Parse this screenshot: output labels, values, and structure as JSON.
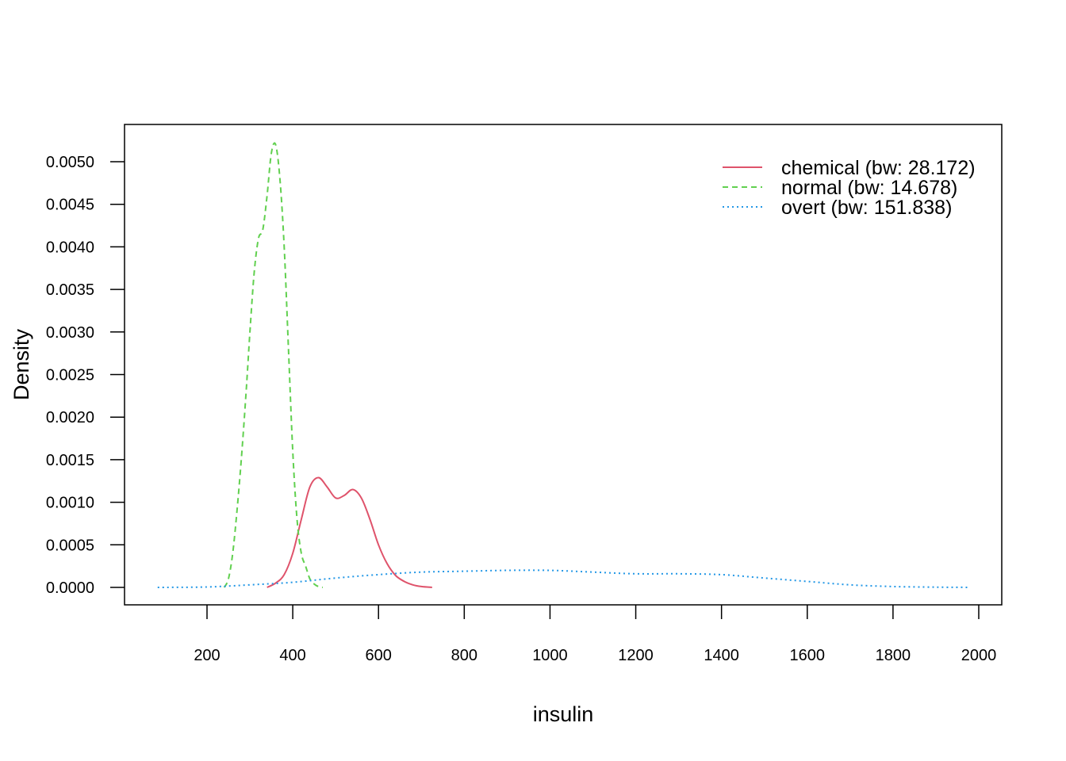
{
  "chart_data": {
    "type": "line",
    "title": "",
    "xlabel": "insulin",
    "ylabel": "Density",
    "xlim": [
      100,
      2000
    ],
    "ylim": [
      0,
      0.0052
    ],
    "x_ticks": [
      200,
      400,
      600,
      800,
      1000,
      1200,
      1400,
      1600,
      1800,
      2000
    ],
    "x_tick_labels": [
      "200",
      "400",
      "600",
      "800",
      "1000",
      "1200",
      "1400",
      "1600",
      "1800",
      "2000"
    ],
    "y_ticks": [
      0,
      0.0005,
      0.001,
      0.0015,
      0.002,
      0.0025,
      0.003,
      0.0035,
      0.004,
      0.0045,
      0.005
    ],
    "y_tick_labels": [
      "0.0000",
      "0.0005",
      "0.0010",
      "0.0015",
      "0.0020",
      "0.0025",
      "0.0030",
      "0.0035",
      "0.0040",
      "0.0045",
      "0.0050"
    ],
    "grid": false,
    "legend_position": "top-right",
    "series": [
      {
        "name": "chemical (bw: 28.172)",
        "color": "#DF536B",
        "dash": "solid",
        "x": [
          340,
          360,
          380,
          400,
          420,
          440,
          460,
          480,
          500,
          520,
          540,
          560,
          580,
          600,
          620,
          640,
          660,
          680,
          700,
          725
        ],
        "y": [
          0.0,
          5e-05,
          0.00015,
          0.0004,
          0.0008,
          0.00118,
          0.00129,
          0.00118,
          0.00105,
          0.00108,
          0.00115,
          0.00105,
          0.0008,
          0.0005,
          0.00028,
          0.00014,
          7e-05,
          3e-05,
          1e-05,
          0.0
        ]
      },
      {
        "name": "normal (bw: 14.678)",
        "color": "#61D04F",
        "dash": "dashed",
        "x": [
          240,
          250,
          260,
          270,
          280,
          290,
          300,
          310,
          320,
          330,
          340,
          350,
          360,
          370,
          380,
          390,
          400,
          410,
          420,
          430,
          440,
          450,
          460,
          470
        ],
        "y": [
          0.0,
          0.0001,
          0.0004,
          0.0009,
          0.0015,
          0.0022,
          0.003,
          0.0037,
          0.0041,
          0.0042,
          0.0046,
          0.0051,
          0.0052,
          0.0048,
          0.004,
          0.0028,
          0.0016,
          0.0008,
          0.0004,
          0.00025,
          0.0001,
          4e-05,
          1e-05,
          0.0
        ]
      },
      {
        "name": "overt (bw: 151.838)",
        "color": "#2297E6",
        "dash": "dotted",
        "x": [
          85,
          200,
          300,
          400,
          500,
          600,
          700,
          800,
          900,
          1000,
          1100,
          1200,
          1300,
          1400,
          1500,
          1600,
          1700,
          1800,
          1900,
          1980
        ],
        "y": [
          0.0,
          5e-06,
          3e-05,
          6e-05,
          0.00011,
          0.00015,
          0.00018,
          0.00019,
          0.0002,
          0.0002,
          0.00018,
          0.00016,
          0.00016,
          0.00015,
          0.00011,
          7e-05,
          3e-05,
          1e-05,
          3e-06,
          0.0
        ]
      }
    ]
  }
}
